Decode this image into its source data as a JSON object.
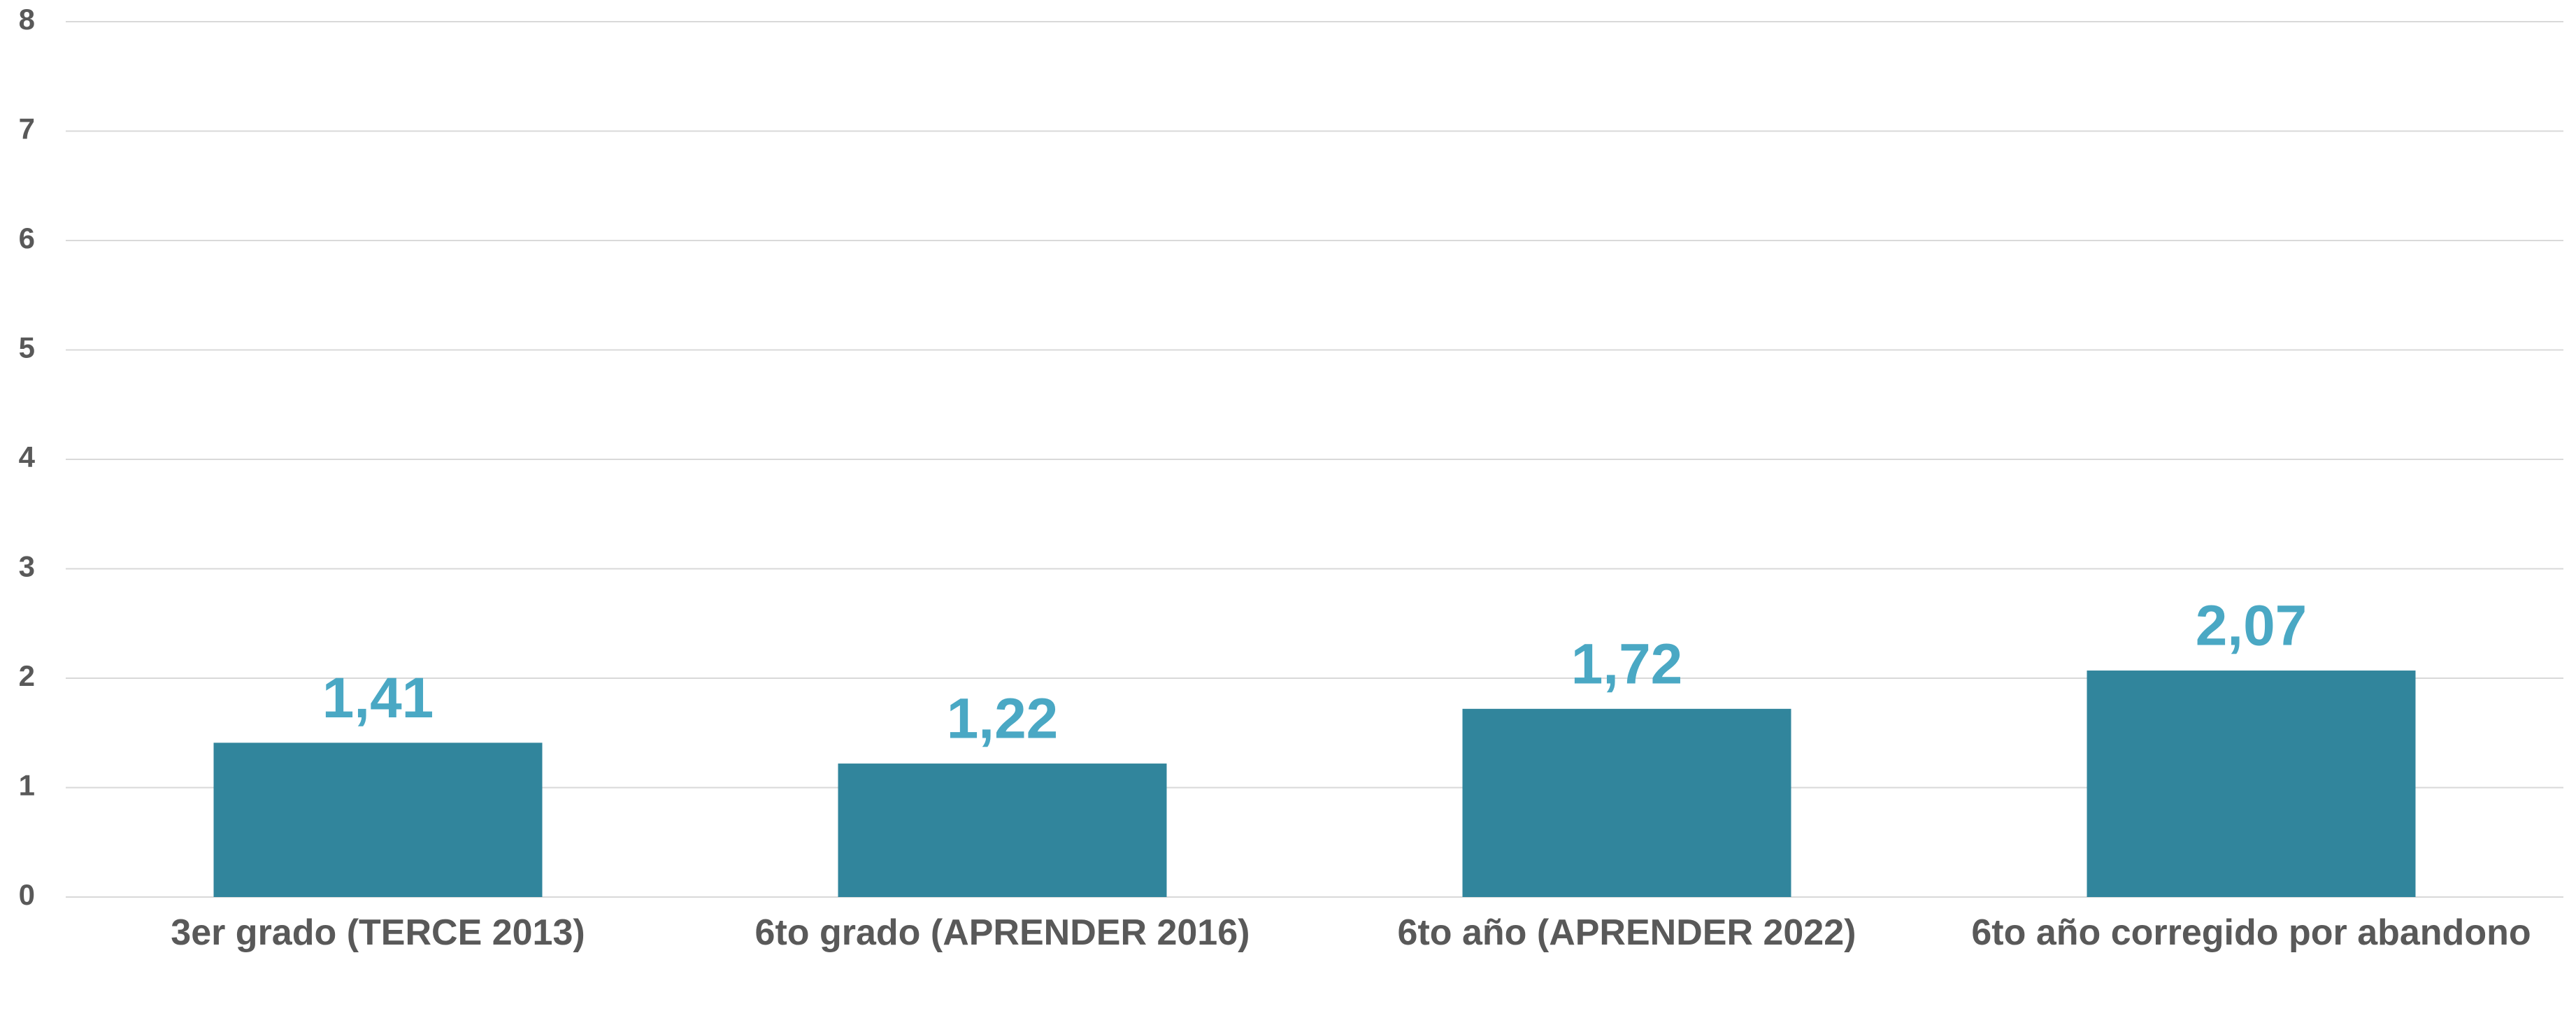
{
  "chart_data": {
    "type": "bar",
    "categories": [
      "3er grado (TERCE 2013)",
      "6to grado (APRENDER 2016)",
      "6to año (APRENDER 2022)",
      "6to año corregido por abandono"
    ],
    "values": [
      1.41,
      1.22,
      1.72,
      2.07
    ],
    "value_labels": [
      "1,41",
      "1,22",
      "1,72",
      "2,07"
    ],
    "color": "#31859c",
    "ylim": [
      0,
      8
    ],
    "yticks": [
      0,
      1,
      2,
      3,
      4,
      5,
      6,
      7,
      8
    ],
    "grid": true
  }
}
